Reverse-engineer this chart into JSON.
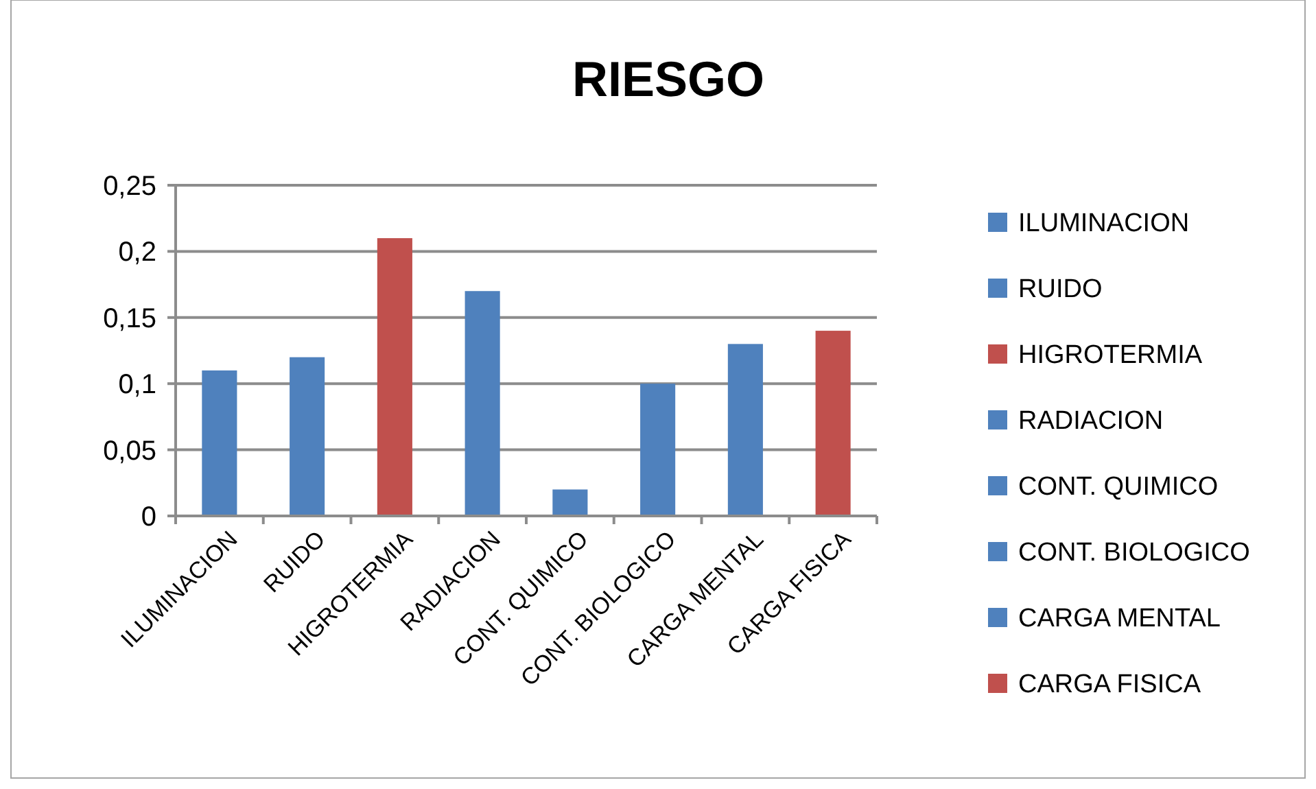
{
  "chart_data": {
    "type": "bar",
    "title": "RIESGO",
    "stacked": true,
    "categories": [
      "ILUMINACION",
      "RUIDO",
      "HIGROTERMIA",
      "RADIACION",
      "CONT. QUIMICO",
      "CONT. BIOLOGICO",
      "CARGA MENTAL",
      "CARGA FISICA"
    ],
    "series": [
      {
        "name": "ILUMINACION",
        "color": "#4f81bd",
        "values": [
          0.11,
          null,
          null,
          null,
          null,
          null,
          null,
          null
        ]
      },
      {
        "name": "RUIDO",
        "color": "#4f81bd",
        "values": [
          null,
          0.12,
          null,
          null,
          null,
          null,
          null,
          null
        ]
      },
      {
        "name": "HIGROTERMIA",
        "color": "#c0504d",
        "values": [
          null,
          null,
          0.21,
          null,
          null,
          null,
          null,
          null
        ]
      },
      {
        "name": "RADIACION",
        "color": "#4f81bd",
        "values": [
          null,
          null,
          null,
          0.17,
          null,
          null,
          null,
          null
        ]
      },
      {
        "name": "CONT. QUIMICO",
        "color": "#4f81bd",
        "values": [
          null,
          null,
          null,
          null,
          0.02,
          null,
          null,
          null
        ]
      },
      {
        "name": "CONT. BIOLOGICO",
        "color": "#4f81bd",
        "values": [
          null,
          null,
          null,
          null,
          null,
          0.1,
          null,
          null
        ]
      },
      {
        "name": "CARGA MENTAL",
        "color": "#4f81bd",
        "values": [
          null,
          null,
          null,
          null,
          null,
          null,
          0.13,
          null
        ]
      },
      {
        "name": "CARGA FISICA",
        "color": "#c0504d",
        "values": [
          null,
          null,
          null,
          null,
          null,
          null,
          null,
          0.14
        ]
      }
    ],
    "ylim": [
      0,
      0.25
    ],
    "yticks": [
      {
        "value": 0,
        "label": "0"
      },
      {
        "value": 0.05,
        "label": "0,05"
      },
      {
        "value": 0.1,
        "label": "0,1"
      },
      {
        "value": 0.15,
        "label": "0,15"
      },
      {
        "value": 0.2,
        "label": "0,2"
      },
      {
        "value": 0.25,
        "label": "0,25"
      }
    ],
    "grid": "y",
    "legend": "right"
  }
}
